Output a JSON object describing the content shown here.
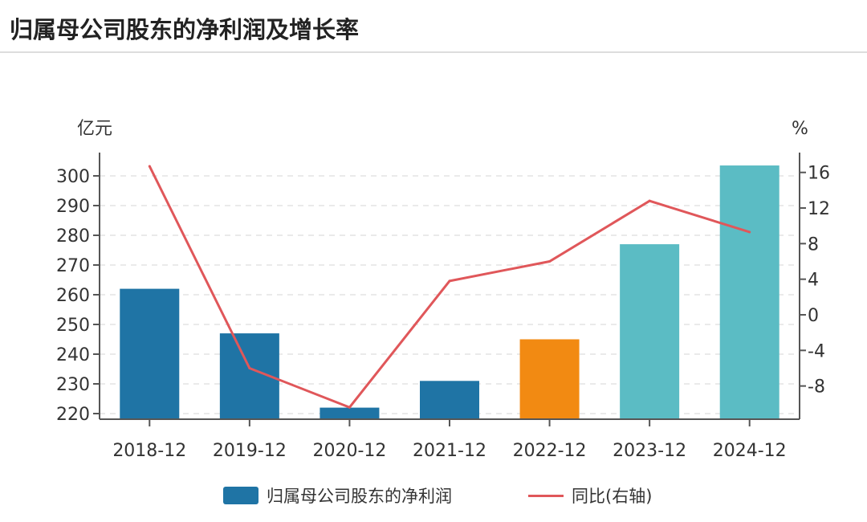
{
  "title": "归属母公司股东的净利润及增长率",
  "chart_data": {
    "type": "bar+line",
    "categories": [
      "2018-12",
      "2019-12",
      "2020-12",
      "2021-12",
      "2022-12",
      "2023-12",
      "2024-12"
    ],
    "series": [
      {
        "name": "归属母公司股东的净利润",
        "type": "bar",
        "axis": "left",
        "values": [
          262,
          247,
          222,
          231,
          245,
          277,
          303.5
        ]
      },
      {
        "name": "同比(右轴)",
        "type": "line",
        "axis": "right",
        "values": [
          16.7,
          -6.0,
          -10.4,
          3.8,
          6.0,
          12.8,
          9.3
        ]
      }
    ],
    "bar_colors": [
      "#1f74a5",
      "#1f74a5",
      "#1f74a5",
      "#1f74a5",
      "#f28a12",
      "#5bbcc4",
      "#5bbcc4"
    ],
    "line_color": "#e0575a",
    "left_axis": {
      "label": "亿元",
      "ticks": [
        220,
        230,
        240,
        250,
        260,
        270,
        280,
        290,
        300
      ],
      "range": [
        218,
        310
      ]
    },
    "right_axis": {
      "label": "%",
      "ticks": [
        -8,
        -4,
        0,
        4,
        8,
        12,
        16
      ],
      "range": [
        -11.9,
        18.4
      ]
    },
    "grid": true,
    "legend_position": "bottom"
  }
}
